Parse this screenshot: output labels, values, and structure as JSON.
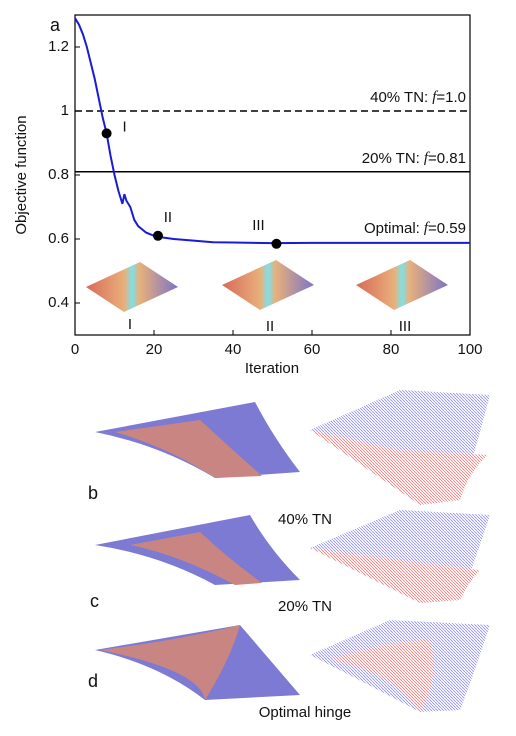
{
  "chart_data": {
    "type": "line",
    "ylabel": "Objective function",
    "xlabel": "Iteration",
    "xlim": [
      0,
      100
    ],
    "xticks": [
      0,
      20,
      40,
      60,
      80,
      100
    ],
    "ylim": [
      0.3,
      1.3
    ],
    "yticks": [
      0.4,
      0.6,
      0.8,
      1,
      1.2
    ],
    "series": [
      {
        "color": "#1a1ad8",
        "x": [
          0,
          1,
          2,
          3,
          4,
          5,
          6,
          7,
          8,
          9,
          10,
          11,
          12,
          12.5,
          13,
          14,
          15,
          16,
          17,
          18,
          20,
          22,
          25,
          30,
          35,
          40,
          50,
          60,
          70,
          80,
          90,
          100
        ],
        "values": [
          1.29,
          1.27,
          1.24,
          1.2,
          1.15,
          1.1,
          1.04,
          0.98,
          0.93,
          0.86,
          0.8,
          0.75,
          0.71,
          0.74,
          0.72,
          0.7,
          0.66,
          0.64,
          0.63,
          0.62,
          0.61,
          0.605,
          0.6,
          0.595,
          0.59,
          0.589,
          0.587,
          0.588,
          0.588,
          0.588,
          0.588,
          0.588
        ]
      }
    ],
    "reference_lines": [
      {
        "label": "40% TN:",
        "symbol": "f",
        "relation": "=",
        "value": 1,
        "value_label": "1.0",
        "style": "dashed"
      },
      {
        "label": "20% TN:",
        "symbol": "f",
        "relation": "=",
        "value": 0.81,
        "value_label": "0.81",
        "style": "solid"
      },
      {
        "label": "Optimal:",
        "symbol": "f",
        "relation": "=",
        "value": 0.59,
        "value_label": "0.59",
        "style": "none"
      }
    ],
    "points": [
      {
        "label": "I",
        "x": 8,
        "y": 0.93
      },
      {
        "label": "II",
        "x": 21,
        "y": 0.61
      },
      {
        "label": "III",
        "x": 51,
        "y": 0.585
      }
    ]
  },
  "panel_labels": [
    "a",
    "b",
    "c",
    "d"
  ],
  "captions": [
    "40% TN",
    "20% TN",
    "Optimal hinge"
  ]
}
